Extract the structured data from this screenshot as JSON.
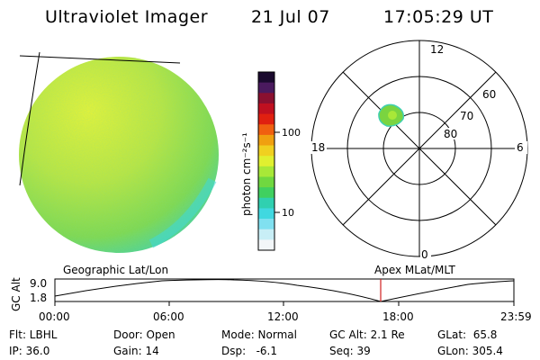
{
  "header": {
    "instrument": "Ultraviolet Imager",
    "date": "21 Jul 07",
    "time": "17:05:29 UT"
  },
  "colorbar": {
    "unit_label": "photon cm⁻²s⁻¹",
    "ticks": [
      "100",
      "10"
    ],
    "colors": [
      "#1a0a2e",
      "#4a1a5e",
      "#8a1030",
      "#c01020",
      "#e02010",
      "#f06010",
      "#f0a010",
      "#f0d020",
      "#e0f030",
      "#a8e838",
      "#70d840",
      "#40d060",
      "#30d0b0",
      "#40d8e0",
      "#80e0f0",
      "#c8eef6",
      "#f2f6f8"
    ]
  },
  "polar": {
    "mlt_labels": {
      "top": "12",
      "right": "6",
      "bottom": "0",
      "left": "18"
    },
    "lat_labels": [
      "60",
      "70",
      "80"
    ]
  },
  "timeline": {
    "left_label": "Geographic Lat/Lon",
    "right_label": "Apex  MLat/MLT",
    "axis_label": "GC Alt",
    "y_ticks": [
      "9.0",
      "1.8"
    ],
    "x_ticks": [
      "00:00",
      "06:00",
      "12:00",
      "18:00",
      "23:59"
    ],
    "current_marker_color": "#d02020"
  },
  "status": {
    "flt": "Flt: LBHL",
    "ip": "IP: 36.0",
    "door": "Door: Open",
    "gain": "Gain: 14",
    "mode": "Mode: Normal",
    "dsp": "Dsp:   -6.1",
    "gcalt": "GC Alt: 2.1 Re",
    "seq": "Seq: 39",
    "glat": "GLat:  65.8",
    "glon": "GLon: 305.4"
  }
}
